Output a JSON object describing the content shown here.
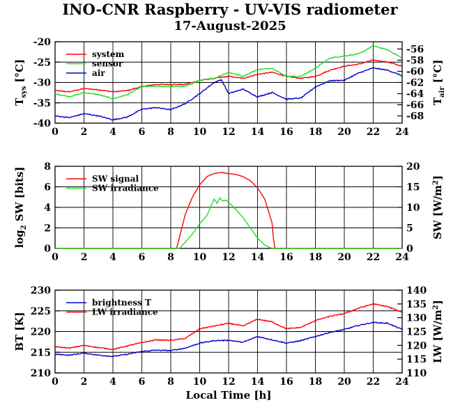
{
  "title": "INO-CNR Raspberry - UV-VIS radiometer",
  "subtitle": "17-August-2025",
  "colors": {
    "red": "#ff0000",
    "green": "#22dd22",
    "blue": "#0000cc",
    "axis": "#000000"
  },
  "chart_data": [
    {
      "type": "line",
      "id": "temperatures",
      "xlabel": "",
      "xlim": [
        0,
        24
      ],
      "xticks": [
        "0",
        "2",
        "4",
        "6",
        "8",
        "10",
        "12",
        "14",
        "16",
        "18",
        "20",
        "22",
        "24"
      ],
      "ylabel_left": {
        "main": "T",
        "sub": "sys",
        "unit": " [°C]"
      },
      "ylim_left": [
        -40,
        -20
      ],
      "yticks_left": [
        "-20",
        "-25",
        "-30",
        "-35",
        "-40"
      ],
      "ylabel_right": {
        "main": "T",
        "sub": "air",
        "unit": " [°C]"
      },
      "ylim_right": [
        -69.3,
        -54.7
      ],
      "yticks_right": [
        "-56",
        "-58",
        "-60",
        "-62",
        "-64",
        "-66",
        "-68"
      ],
      "legend_position": "top-left",
      "series": [
        {
          "name": "system",
          "color": "#ff0000",
          "axis": "left",
          "x": [
            0,
            1,
            2,
            3,
            4,
            5,
            6,
            7,
            8,
            9,
            10,
            11,
            12,
            13,
            14,
            15,
            16,
            17,
            18,
            19,
            20,
            21,
            22,
            23,
            24
          ],
          "values": [
            -32,
            -32.3,
            -31.5,
            -31.8,
            -32.3,
            -32,
            -31,
            -30.5,
            -30.5,
            -30.5,
            -29.5,
            -29,
            -28.5,
            -29,
            -28,
            -27.5,
            -28.5,
            -29,
            -28.5,
            -27,
            -26,
            -25.5,
            -24.5,
            -25,
            -26
          ]
        },
        {
          "name": "sensor",
          "color": "#22dd22",
          "axis": "left",
          "x": [
            0,
            1,
            2,
            3,
            4,
            5,
            6,
            7,
            8,
            9,
            10,
            11,
            12,
            13,
            14,
            15,
            16,
            17,
            18,
            19,
            20,
            21,
            22,
            23,
            24
          ],
          "values": [
            -32.8,
            -33.5,
            -32.5,
            -33,
            -34,
            -33,
            -31,
            -31,
            -31,
            -31,
            -29.5,
            -29,
            -27.5,
            -28.5,
            -26.8,
            -26.5,
            -28.5,
            -28.5,
            -26.5,
            -24,
            -23.5,
            -23,
            -21,
            -22,
            -24
          ]
        },
        {
          "name": "air",
          "color": "#0000cc",
          "axis": "right",
          "x": [
            0,
            1,
            2,
            3,
            4,
            5,
            6,
            7,
            8,
            9,
            10,
            11,
            11.5,
            12,
            13,
            14,
            15,
            16,
            17,
            18,
            19,
            20,
            21,
            22,
            23,
            24
          ],
          "values": [
            -68,
            -68.3,
            -67.6,
            -68,
            -68.7,
            -68.2,
            -66.8,
            -66.5,
            -66.9,
            -65.8,
            -64,
            -62,
            -61.5,
            -64,
            -63.2,
            -64.6,
            -63.8,
            -65,
            -64.8,
            -62.8,
            -61.7,
            -61.6,
            -60.3,
            -59.4,
            -59.8,
            -60.8
          ]
        }
      ]
    },
    {
      "type": "line",
      "id": "shortwave",
      "xlabel": "",
      "xlim": [
        0,
        24
      ],
      "xticks": [
        "0",
        "2",
        "4",
        "6",
        "8",
        "10",
        "12",
        "14",
        "16",
        "18",
        "20",
        "22",
        "24"
      ],
      "ylabel_left": {
        "main": "log",
        "sub": "2",
        "unit": " SW [bits]"
      },
      "ylim_left": [
        0,
        8
      ],
      "yticks_left": [
        "0",
        "2",
        "4",
        "6",
        "8"
      ],
      "ylabel_right": {
        "main": "SW [W/m",
        "sup": "2",
        "unit": "]"
      },
      "ylim_right": [
        0,
        20
      ],
      "yticks_right": [
        "0",
        "5",
        "10",
        "15",
        "20"
      ],
      "legend_position": "top-left",
      "series": [
        {
          "name": "SW signal",
          "color": "#ff0000",
          "axis": "left",
          "x": [
            0,
            8.4,
            8.5,
            9,
            9.5,
            10,
            10.5,
            11,
            11.5,
            12,
            12.5,
            13,
            13.5,
            14,
            14.5,
            15,
            15.1,
            15.2,
            24
          ],
          "values": [
            0,
            0,
            0.5,
            3.3,
            5,
            6.2,
            7,
            7.3,
            7.4,
            7.3,
            7.2,
            7,
            6.6,
            5.9,
            4.8,
            2.5,
            1,
            0,
            0
          ]
        },
        {
          "name": "SW irradiance",
          "color": "#22dd22",
          "axis": "right",
          "x": [
            0,
            8.6,
            9,
            9.5,
            10,
            10.5,
            10.8,
            11,
            11.2,
            11.4,
            11.6,
            11.8,
            12,
            12.5,
            13,
            13.5,
            14,
            14.5,
            15,
            24
          ],
          "values": [
            0,
            0,
            1.5,
            3.5,
            6,
            8,
            10.5,
            12,
            11,
            12.3,
            11.5,
            11.8,
            11.2,
            9.5,
            7.5,
            5,
            2.5,
            0.8,
            0,
            0
          ]
        }
      ]
    },
    {
      "type": "line",
      "id": "longwave",
      "xlabel": "Local Time [h]",
      "xlim": [
        0,
        24
      ],
      "xticks": [
        "0",
        "2",
        "4",
        "6",
        "8",
        "10",
        "12",
        "14",
        "16",
        "18",
        "20",
        "22",
        "24"
      ],
      "ylabel_left": {
        "main": "BT [K]"
      },
      "ylim_left": [
        210,
        230
      ],
      "yticks_left": [
        "230",
        "225",
        "220",
        "215",
        "210"
      ],
      "ylabel_right": {
        "main": "LW [W/m",
        "sup": "2",
        "unit": "]"
      },
      "ylim_right": [
        110,
        140
      ],
      "yticks_right": [
        "140",
        "135",
        "130",
        "125",
        "120",
        "115",
        "110"
      ],
      "legend_position": "top-left",
      "series": [
        {
          "name": "brightness T",
          "color": "#0000cc",
          "axis": "left",
          "x": [
            0,
            1,
            2,
            3,
            4,
            5,
            6,
            7,
            8,
            9,
            10,
            11,
            12,
            13,
            14,
            15,
            16,
            17,
            18,
            19,
            20,
            21,
            22,
            23,
            24
          ],
          "values": [
            214.5,
            214.3,
            214.8,
            214.3,
            214,
            214.5,
            215.2,
            215.5,
            215.4,
            216,
            217.2,
            217.8,
            217.9,
            217.4,
            218.8,
            218,
            217.2,
            217.8,
            218.8,
            219.8,
            220.5,
            221.5,
            222.2,
            222,
            220.5
          ]
        },
        {
          "name": "LW irradiance",
          "color": "#ff0000",
          "axis": "right",
          "x": [
            0,
            1,
            2,
            3,
            4,
            5,
            6,
            7,
            8,
            9,
            10,
            11,
            12,
            13,
            14,
            15,
            16,
            17,
            18,
            19,
            20,
            21,
            22,
            23,
            24
          ],
          "values": [
            119.5,
            119,
            120,
            119.2,
            118.5,
            119.8,
            121,
            122,
            121.8,
            122.5,
            126,
            127,
            128,
            127,
            129.5,
            128.5,
            126,
            126.5,
            129,
            130.5,
            131.5,
            133.5,
            135,
            134,
            132
          ]
        }
      ]
    }
  ]
}
